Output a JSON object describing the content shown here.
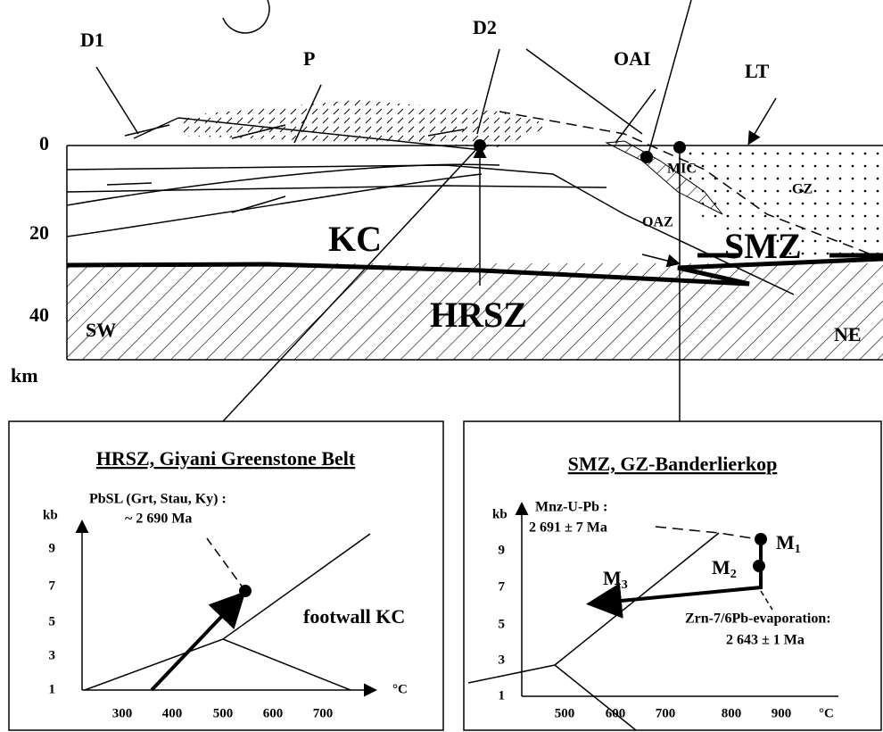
{
  "section": {
    "labels": {
      "d1": "D1",
      "p": "P",
      "d2": "D2",
      "oai": "OAI",
      "lt": "LT",
      "mic": "MIC",
      "gz": "GZ",
      "oaz": "OAZ",
      "kc": "KC",
      "smz": "SMZ",
      "hrsz": "HRSZ",
      "sw": "SW",
      "ne": "NE"
    },
    "depth_ticks": [
      0,
      20,
      40
    ],
    "depth_unit": "km"
  },
  "left_panel": {
    "title": "HRSZ, Giyani Greenstone Belt",
    "y_unit": "kb",
    "x_unit": "°C",
    "yticks": [
      1,
      3,
      5,
      7,
      9
    ],
    "xticks": [
      300,
      400,
      500,
      600,
      700
    ],
    "annotation_1": "PbSL (Grt, Stau, Ky) :",
    "annotation_2": "~ 2 690 Ma",
    "field_label": "footwall KC"
  },
  "right_panel": {
    "title": "SMZ, GZ-Banderlierkop",
    "y_unit": "kb",
    "x_unit": "°C",
    "yticks": [
      1,
      3,
      5,
      7,
      9
    ],
    "xticks": [
      500,
      600,
      700,
      800,
      900
    ],
    "annotation_1": "Mnz-U-Pb :",
    "annotation_2": "2 691 ±  7 Ma",
    "zrn_1": "Zrn-7/6Pb-evaporation:",
    "zrn_2": "2 643 ± 1 Ma",
    "m1": {
      "letter": "M",
      "index": "1"
    },
    "m2": {
      "letter": "M",
      "index": "2"
    },
    "m3": {
      "letter": "M",
      "index": "3"
    }
  }
}
